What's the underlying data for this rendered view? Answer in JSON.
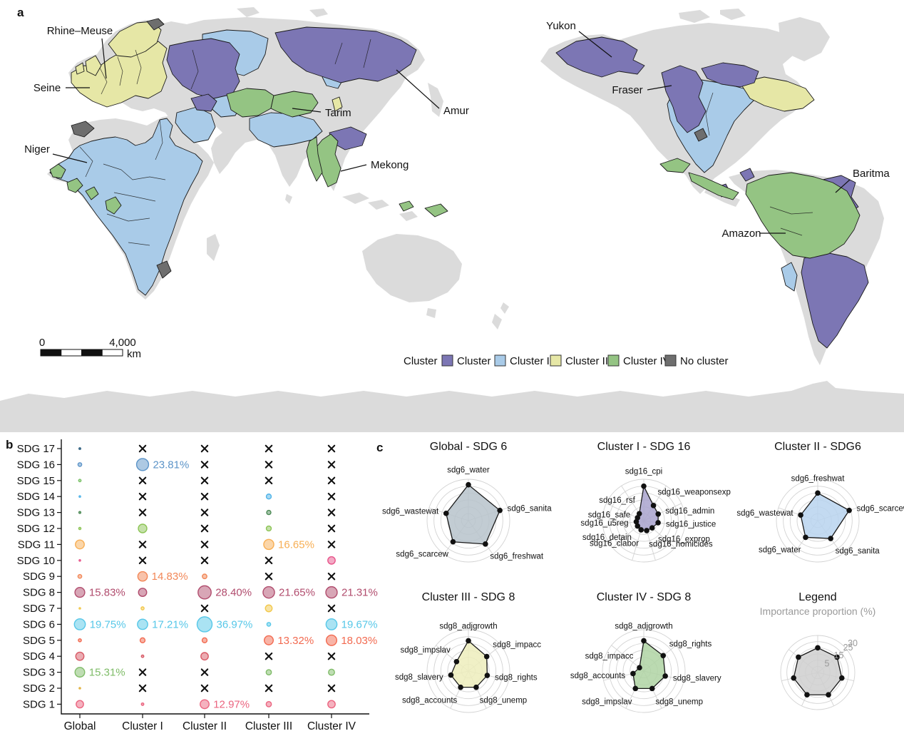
{
  "figure": {
    "panel_a_label": "a",
    "panel_b_label": "b",
    "panel_c_label": "c"
  },
  "map": {
    "basin_labels": [
      "Rhine–Meuse",
      "Seine",
      "Niger",
      "Tarim",
      "Amur",
      "Mekong",
      "Yukon",
      "Fraser",
      "Baritma",
      "Amazon"
    ],
    "scalebar": {
      "start": "0",
      "end": "4,000",
      "unit": "km"
    },
    "legend": {
      "title": "Cluster",
      "items": [
        {
          "label": "Cluster I",
          "color": "#7C76B4"
        },
        {
          "label": "Cluster II",
          "color": "#A9CBE8"
        },
        {
          "label": "Cluster III",
          "color": "#E6E7A6"
        },
        {
          "label": "Cluster IV",
          "color": "#94C483"
        },
        {
          "label": "No cluster",
          "color": "#6E6E6E"
        }
      ]
    },
    "colors": {
      "land": "#DBDBDB",
      "ocean": "#FFFFFF",
      "border": "#1A1A1A"
    }
  },
  "chart_data": [
    {
      "type": "bubble-matrix",
      "title": "SDG indicator importance by cluster",
      "categories": [
        "Global",
        "Cluster I",
        "Cluster II",
        "Cluster III",
        "Cluster IV"
      ],
      "missing_marker": "x",
      "value_unit": "%",
      "rows": [
        {
          "label": "SDG 17",
          "color": "#2B5D7C",
          "values": [
            0.5,
            null,
            null,
            null,
            null
          ],
          "value_labels": [
            null,
            null,
            null,
            null,
            null
          ]
        },
        {
          "label": "SDG 16",
          "color": "#5C94C8",
          "values": [
            2.3,
            23.81,
            null,
            null,
            null
          ],
          "value_labels": [
            null,
            "23.81%",
            null,
            null,
            null
          ]
        },
        {
          "label": "SDG 15",
          "color": "#7CC269",
          "values": [
            1.0,
            null,
            null,
            null,
            null
          ],
          "value_labels": [
            null,
            null,
            null,
            null,
            null
          ]
        },
        {
          "label": "SDG 14",
          "color": "#4FB3E8",
          "values": [
            0.4,
            null,
            null,
            4.0,
            null
          ],
          "value_labels": [
            null,
            null,
            null,
            null,
            null
          ]
        },
        {
          "label": "SDG 13",
          "color": "#4C8A55",
          "values": [
            0.6,
            null,
            null,
            3.0,
            null
          ],
          "value_labels": [
            null,
            null,
            null,
            null,
            null
          ]
        },
        {
          "label": "SDG 12",
          "color": "#8CC455",
          "values": [
            0.8,
            12.0,
            null,
            4.0,
            null
          ],
          "value_labels": [
            null,
            null,
            null,
            null,
            null
          ]
        },
        {
          "label": "SDG 11",
          "color": "#F7AE53",
          "values": [
            13.0,
            null,
            null,
            16.65,
            null
          ],
          "value_labels": [
            null,
            null,
            null,
            "16.65%",
            null
          ]
        },
        {
          "label": "SDG 10",
          "color": "#E8568B",
          "values": [
            0.3,
            null,
            null,
            null,
            9.0
          ],
          "value_labels": [
            null,
            null,
            null,
            null,
            null
          ]
        },
        {
          "label": "SDG 9",
          "color": "#F28757",
          "values": [
            2.3,
            14.83,
            3.4,
            null,
            null
          ],
          "value_labels": [
            null,
            "14.83%",
            null,
            null,
            null
          ]
        },
        {
          "label": "SDG 8",
          "color": "#B14D6E",
          "values": [
            15.83,
            11.0,
            28.4,
            21.65,
            21.31
          ],
          "value_labels": [
            "15.83%",
            null,
            "28.40%",
            "21.65%",
            "21.31%"
          ]
        },
        {
          "label": "SDG 7",
          "color": "#F2C84B",
          "values": [
            0.3,
            1.5,
            null,
            7.5,
            null
          ],
          "value_labels": [
            null,
            null,
            null,
            null,
            null
          ]
        },
        {
          "label": "SDG 6",
          "color": "#56C7E8",
          "values": [
            19.75,
            17.21,
            36.97,
            2.3,
            19.67
          ],
          "value_labels": [
            "19.75%",
            "17.21%",
            "36.97%",
            null,
            "19.67%"
          ]
        },
        {
          "label": "SDG 5",
          "color": "#F26A50",
          "values": [
            1.5,
            4.0,
            4.0,
            13.32,
            18.03
          ],
          "value_labels": [
            null,
            null,
            null,
            "13.32%",
            "18.03%"
          ]
        },
        {
          "label": "SDG 4",
          "color": "#D85A66",
          "values": [
            11.0,
            1.0,
            9.0,
            null,
            null
          ],
          "value_labels": [
            null,
            null,
            null,
            null,
            null
          ]
        },
        {
          "label": "SDG 3",
          "color": "#7FBC68",
          "values": [
            15.31,
            null,
            null,
            4.5,
            6.0
          ],
          "value_labels": [
            "15.31%",
            null,
            null,
            null,
            null
          ]
        },
        {
          "label": "SDG 2",
          "color": "#E2B23F",
          "values": [
            0.4,
            null,
            null,
            null,
            null
          ],
          "value_labels": [
            null,
            null,
            null,
            null,
            null
          ]
        },
        {
          "label": "SDG 1",
          "color": "#EB6580",
          "values": [
            9.0,
            1.0,
            12.97,
            4.5,
            9.0
          ],
          "value_labels": [
            null,
            null,
            "12.97%",
            null,
            null
          ]
        }
      ]
    },
    {
      "type": "radar",
      "title": "Global - SDG 6",
      "fill": "#B7C3CB",
      "max": 30,
      "rings": [
        5,
        10,
        15,
        20,
        25,
        30
      ],
      "axes": [
        "sdg6_water",
        "sdg6_sanita",
        "sdg6_freshwat",
        "sdg6_scarcew",
        "sdg6_wastewat"
      ],
      "values": [
        26,
        24,
        21,
        19,
        17
      ]
    },
    {
      "type": "radar",
      "title": "Cluster I - SDG 16",
      "fill": "#A9A3CE",
      "max": 30,
      "rings": [
        5,
        10,
        15,
        20,
        25,
        30
      ],
      "axes": [
        "sdg16_cpi",
        "sdg16_weaponsexp",
        "sdg16_admin",
        "sdg16_justice",
        "sdg16_exprop",
        "sdg16_homicides",
        "sdg16_clabor",
        "sdg16_detain",
        "sdg16_u5reg",
        "sdg16_safe",
        "sdg16_rsf"
      ],
      "values": [
        25,
        13,
        11.5,
        10.5,
        8,
        7.5,
        7,
        6,
        5.5,
        5,
        6
      ]
    },
    {
      "type": "radar",
      "title": "Cluster II - SDG6",
      "fill": "#B9D4EE",
      "max": 30,
      "rings": [
        5,
        10,
        15,
        20,
        25,
        30
      ],
      "axes": [
        "sdg6_freshwat",
        "sdg6_scarcew",
        "sdg6_sanita",
        "sdg6_water",
        "sdg6_wastewat"
      ],
      "values": [
        20,
        24,
        16,
        15,
        13
      ]
    },
    {
      "type": "radar",
      "title": "Cluster III - SDG 8",
      "fill": "#EDEDBC",
      "max": 30,
      "rings": [
        5,
        10,
        15,
        20,
        25,
        30
      ],
      "axes": [
        "sdg8_adjgrowth",
        "sdg8_impacc",
        "sdg8_rights",
        "sdg8_unemp",
        "sdg8_accounts",
        "sdg8_slavery",
        "sdg8_impslav"
      ],
      "values": [
        22,
        17,
        14,
        13,
        13,
        13,
        11
      ]
    },
    {
      "type": "radar",
      "title": "Cluster IV - SDG 8",
      "fill": "#AFD3A3",
      "max": 30,
      "rings": [
        5,
        10,
        15,
        20,
        25,
        30
      ],
      "axes": [
        "sdg8_adjgrowth",
        "sdg8_rights",
        "sdg8_slavery",
        "sdg8_unemp",
        "sdg8_impslav",
        "sdg8_accounts",
        "sdg8_impacc"
      ],
      "values": [
        22,
        18,
        16,
        14,
        14,
        8,
        4
      ]
    },
    {
      "type": "radar",
      "title": "Legend",
      "subtitle": "Importance proportion (%)",
      "fill": "#CFCFCF",
      "max": 30,
      "rings": [
        5,
        10,
        15,
        20,
        25,
        30
      ],
      "axes": [
        "",
        "",
        "",
        "",
        "",
        "",
        ""
      ],
      "values": [
        20,
        20,
        20,
        20,
        20,
        20,
        20
      ],
      "ring_labels": [
        {
          "value": 5,
          "text": "5"
        },
        {
          "value": 15,
          "text": "15"
        },
        {
          "value": 25,
          "text": "25"
        },
        {
          "value": 30,
          "text": "30"
        }
      ]
    }
  ]
}
